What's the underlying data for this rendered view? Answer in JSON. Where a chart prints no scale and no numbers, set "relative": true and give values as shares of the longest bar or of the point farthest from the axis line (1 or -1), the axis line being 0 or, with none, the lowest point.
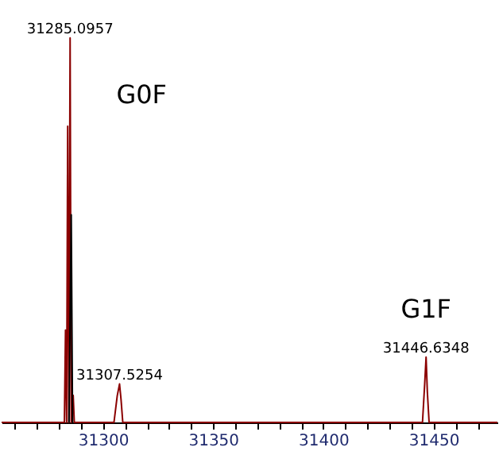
{
  "chart_data": {
    "type": "line",
    "relative": true,
    "xlim": [
      31254,
      31479
    ],
    "xticks": [
      {
        "value": 31260,
        "label": null
      },
      {
        "value": 31270,
        "label": null
      },
      {
        "value": 31280,
        "label": null
      },
      {
        "value": 31290,
        "label": null
      },
      31300,
      {
        "value": 31310,
        "label": null
      },
      {
        "value": 31320,
        "label": null
      },
      {
        "value": 31330,
        "label": null
      },
      {
        "value": 31340,
        "label": null
      },
      31350,
      {
        "value": 31360,
        "label": null
      },
      {
        "value": 31370,
        "label": null
      },
      {
        "value": 31380,
        "label": null
      },
      {
        "value": 31390,
        "label": null
      },
      31400,
      {
        "value": 31410,
        "label": null
      },
      {
        "value": 31420,
        "label": null
      },
      {
        "value": 31430,
        "label": null
      },
      {
        "value": 31440,
        "label": null
      },
      31450,
      {
        "value": 31460,
        "label": null
      },
      {
        "value": 31470,
        "label": null
      }
    ],
    "series": [
      {
        "color": "#8b0000",
        "x": [
          31254,
          31282.5,
          31283,
          31283.5,
          31284,
          31284.5,
          31285.0957,
          31285.6,
          31286.5,
          31287,
          31305,
          31306.5,
          31307.5254,
          31308.2,
          31309,
          31445,
          31446,
          31446.6348,
          31447.2,
          31448,
          31479
        ],
        "values": [
          0,
          0,
          0.24,
          0,
          0.77,
          0,
          1,
          0,
          0.07,
          0,
          0,
          0.07,
          0.1,
          0.06,
          0,
          0,
          0.1,
          0.17,
          0.08,
          0,
          0
        ]
      },
      {
        "color": "#000000",
        "x": [
          31284.6,
          31285.6,
          31286.2
        ],
        "values": [
          0,
          0.54,
          0
        ]
      }
    ],
    "annotations": [
      {
        "text": "31285.0957",
        "x": 31285.0957,
        "y": 1
      },
      {
        "text": "31307.5254",
        "x": 31307.5254,
        "y": 0.1
      },
      {
        "text": "31446.6348",
        "x": 31446.6348,
        "y": 0.17
      },
      {
        "text": "G0F",
        "x": 31285.0957,
        "y": 1
      },
      {
        "text": "G1F",
        "x": 31446.6348,
        "y": 0.17
      }
    ],
    "grid": false
  }
}
